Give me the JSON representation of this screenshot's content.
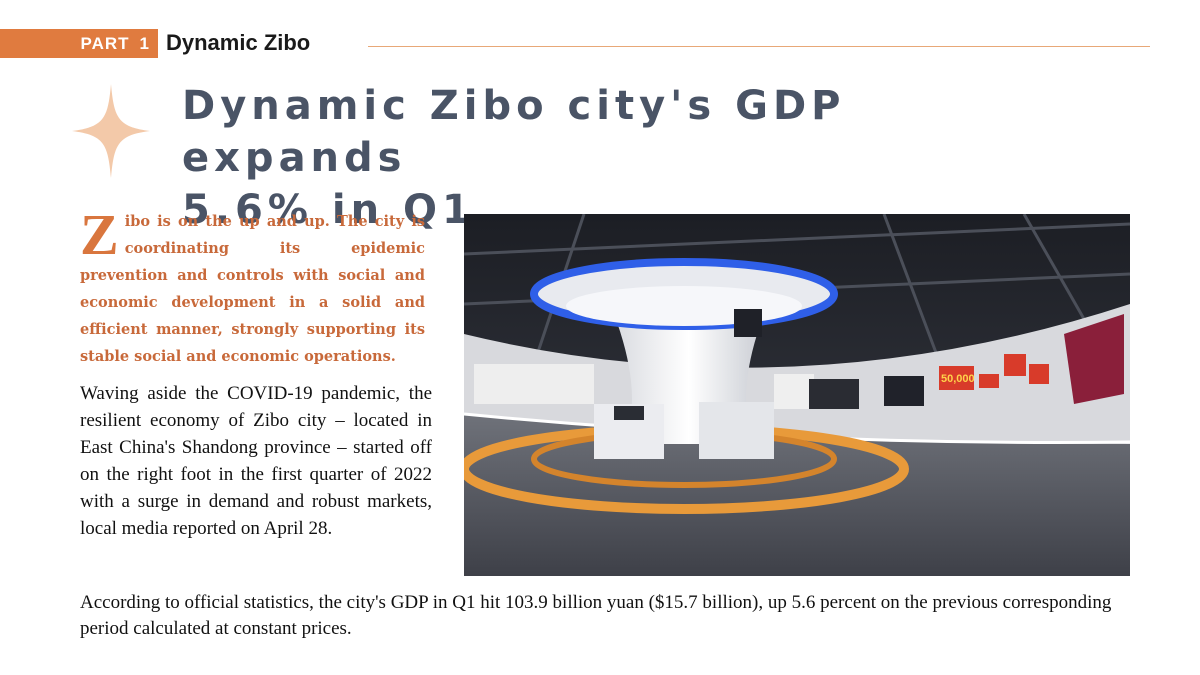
{
  "header": {
    "part_word": "PART",
    "part_number": "1",
    "section_title": "Dynamic Zibo"
  },
  "article": {
    "headline_line1": "Dynamic Zibo city's GDP expands",
    "headline_line2": "5.6% in Q1",
    "lead_dropcap": "Z",
    "lead_text": "ibo is on the up and up. The city is coordinating its epidemic prevention and controls with social and economic development in a solid and efficient manner, strongly supporting its stable social and economic operations.",
    "paragraph1": "Waving aside the COVID-19 pandemic, the resilient economy of Zibo city – located in East China's Shandong province – started off on the right foot in the first quarter of 2022 with a surge in demand and robust markets, local media reported on April 28.",
    "paragraph2": "According to official statistics, the city's GDP in Q1 hit 103.9 billion yuan ($15.7 billion), up 5.6 percent on the previous corresponding period calculated at constant prices."
  },
  "photo": {
    "wall_number": "50,000"
  },
  "colors": {
    "accent_orange": "#e07b3f",
    "lead_text": "#c8693a",
    "headline": "#4a5466",
    "star": "#f3c9a9"
  }
}
